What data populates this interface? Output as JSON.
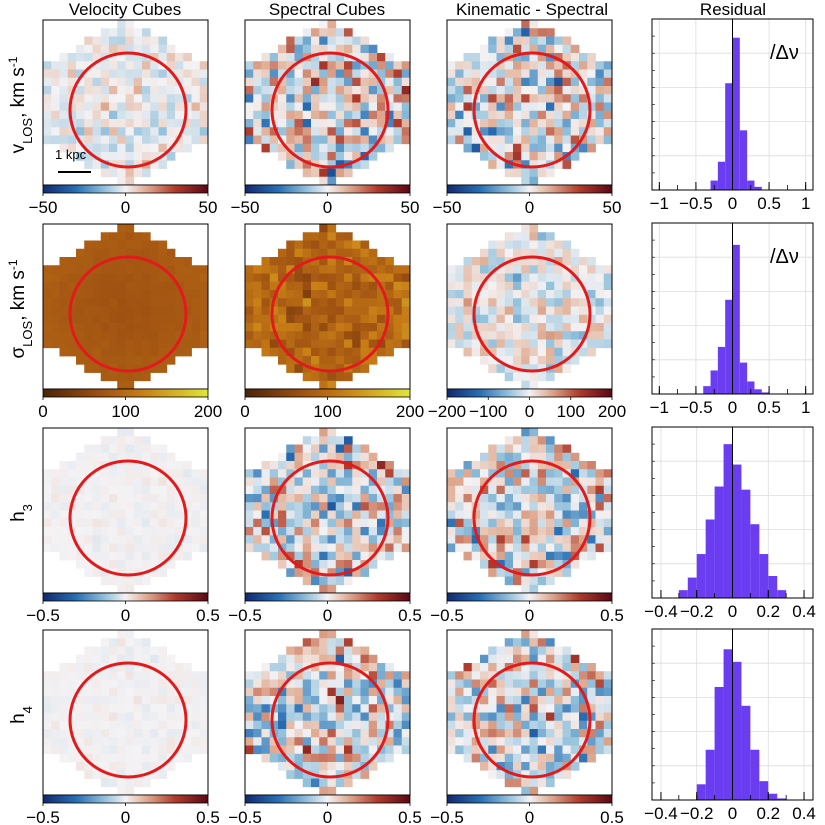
{
  "chart_data": {
    "type": "heatmap",
    "column_titles": [
      "Velocity Cubes",
      "Spectral Cubes",
      "Kinematic - Spectral",
      "Residual"
    ],
    "scalebar_label": "1 kpc",
    "ellipse_color": "#e31a1c",
    "histogram_color": "#6a3df0",
    "rows": [
      {
        "row_label": "v_LOS, km s^-1",
        "label_parts": [
          "v",
          "LOS",
          ", km s",
          "-1"
        ],
        "maps": [
          {
            "panel": "velocity",
            "cmap": "diverging",
            "range": [
              -50,
              50
            ],
            "ticks": [
              -50,
              0,
              50
            ],
            "tick_labels": [
              "−50",
              "0",
              "50"
            ]
          },
          {
            "panel": "spectral",
            "cmap": "diverging",
            "range": [
              -50,
              50
            ],
            "ticks": [
              -50,
              0,
              50
            ],
            "tick_labels": [
              "−50",
              "0",
              "50"
            ]
          },
          {
            "panel": "difference",
            "cmap": "diverging",
            "range": [
              -50,
              50
            ],
            "ticks": [
              -50,
              0,
              50
            ],
            "tick_labels": [
              "−50",
              "0",
              "50"
            ]
          }
        ],
        "residual": {
          "xlim": [
            -1.1,
            1.1
          ],
          "xticks": [
            -1,
            -0.5,
            0,
            0.5,
            1
          ],
          "xtick_labels": [
            "−1",
            "−0.5",
            "0",
            "0.5",
            "1"
          ],
          "label": "/Δν",
          "bins": [
            -0.3,
            -0.2,
            -0.1,
            0,
            0.1,
            0.2,
            0.3,
            0.4
          ],
          "counts": [
            0.06,
            0.18,
            0.68,
            0.97,
            0.38,
            0.06,
            0.02
          ],
          "ymax": 1.0
        }
      },
      {
        "row_label": "σ_LOS, km s^-1",
        "label_parts": [
          "σ",
          "LOS",
          ", km s",
          "-1"
        ],
        "maps": [
          {
            "panel": "velocity",
            "cmap": "sequential",
            "range": [
              0,
              200
            ],
            "ticks": [
              0,
              100,
              200
            ],
            "tick_labels": [
              "0",
              "100",
              "200"
            ]
          },
          {
            "panel": "spectral",
            "cmap": "sequential",
            "range": [
              0,
              200
            ],
            "ticks": [
              0,
              100,
              200
            ],
            "tick_labels": [
              "0",
              "100",
              "200"
            ]
          },
          {
            "panel": "difference",
            "cmap": "diverging",
            "range": [
              -200,
              200
            ],
            "ticks": [
              -200,
              -100,
              0,
              100,
              200
            ],
            "tick_labels": [
              "−200",
              "−100",
              "0",
              "100",
              "200"
            ]
          }
        ],
        "residual": {
          "xlim": [
            -1.1,
            1.1
          ],
          "xticks": [
            -1,
            -0.5,
            0,
            0.5,
            1
          ],
          "xtick_labels": [
            "−1",
            "−0.5",
            "0",
            "0.5",
            "1"
          ],
          "label": "/Δν",
          "bins": [
            -0.4,
            -0.3,
            -0.2,
            -0.1,
            0,
            0.1,
            0.2,
            0.3,
            0.4,
            0.5
          ],
          "counts": [
            0.05,
            0.15,
            0.3,
            0.6,
            0.95,
            0.2,
            0.08,
            0.03,
            0.01
          ],
          "ymax": 1.0
        }
      },
      {
        "row_label": "h_3",
        "label_parts": [
          "h",
          "3",
          "",
          ""
        ],
        "maps": [
          {
            "panel": "velocity",
            "cmap": "diverging",
            "range": [
              -0.5,
              0.5
            ],
            "ticks": [
              -0.5,
              0,
              0.5
            ],
            "tick_labels": [
              "−0.5",
              "0",
              "0.5"
            ]
          },
          {
            "panel": "spectral",
            "cmap": "diverging",
            "range": [
              -0.5,
              0.5
            ],
            "ticks": [
              -0.5,
              0,
              0.5
            ],
            "tick_labels": [
              "−0.5",
              "0",
              "0.5"
            ]
          },
          {
            "panel": "difference",
            "cmap": "diverging",
            "range": [
              -0.5,
              0.5
            ],
            "ticks": [
              -0.5,
              0,
              0.5
            ],
            "tick_labels": [
              "−0.5",
              "0",
              "0.5"
            ]
          }
        ],
        "residual": {
          "xlim": [
            -0.45,
            0.45
          ],
          "xticks": [
            -0.4,
            -0.2,
            0,
            0.2,
            0.4
          ],
          "xtick_labels": [
            "−0.4",
            "−0.2",
            "0",
            "0.2",
            "0.4"
          ],
          "label": "",
          "bins": [
            -0.3,
            -0.25,
            -0.2,
            -0.15,
            -0.1,
            -0.05,
            0,
            0.05,
            0.1,
            0.15,
            0.2,
            0.25,
            0.3
          ],
          "counts": [
            0.05,
            0.13,
            0.28,
            0.5,
            0.71,
            0.98,
            0.85,
            0.69,
            0.47,
            0.28,
            0.14,
            0.05
          ],
          "ymax": 1.0
        }
      },
      {
        "row_label": "h_4",
        "label_parts": [
          "h",
          "4",
          "",
          ""
        ],
        "maps": [
          {
            "panel": "velocity",
            "cmap": "diverging",
            "range": [
              -0.5,
              0.5
            ],
            "ticks": [
              -0.5,
              0,
              0.5
            ],
            "tick_labels": [
              "−0.5",
              "0",
              "0.5"
            ]
          },
          {
            "panel": "spectral",
            "cmap": "diverging",
            "range": [
              -0.5,
              0.5
            ],
            "ticks": [
              -0.5,
              0,
              0.5
            ],
            "tick_labels": [
              "−0.5",
              "0",
              "0.5"
            ]
          },
          {
            "panel": "difference",
            "cmap": "diverging",
            "range": [
              -0.5,
              0.5
            ],
            "ticks": [
              -0.5,
              0,
              0.5
            ],
            "tick_labels": [
              "−0.5",
              "0",
              "0.5"
            ]
          }
        ],
        "residual": {
          "xlim": [
            -0.45,
            0.45
          ],
          "xticks": [
            -0.4,
            -0.2,
            0,
            0.2,
            0.4
          ],
          "xtick_labels": [
            "−0.4",
            "−0.2",
            "0",
            "0.2",
            "0.4"
          ],
          "label": "",
          "bins": [
            -0.2,
            -0.15,
            -0.1,
            -0.05,
            0,
            0.05,
            0.1,
            0.15,
            0.2,
            0.25,
            0.3
          ],
          "counts": [
            0.1,
            0.32,
            0.72,
            0.96,
            0.88,
            0.6,
            0.32,
            0.12,
            0.04,
            0.01
          ],
          "ymax": 1.0
        }
      }
    ]
  }
}
